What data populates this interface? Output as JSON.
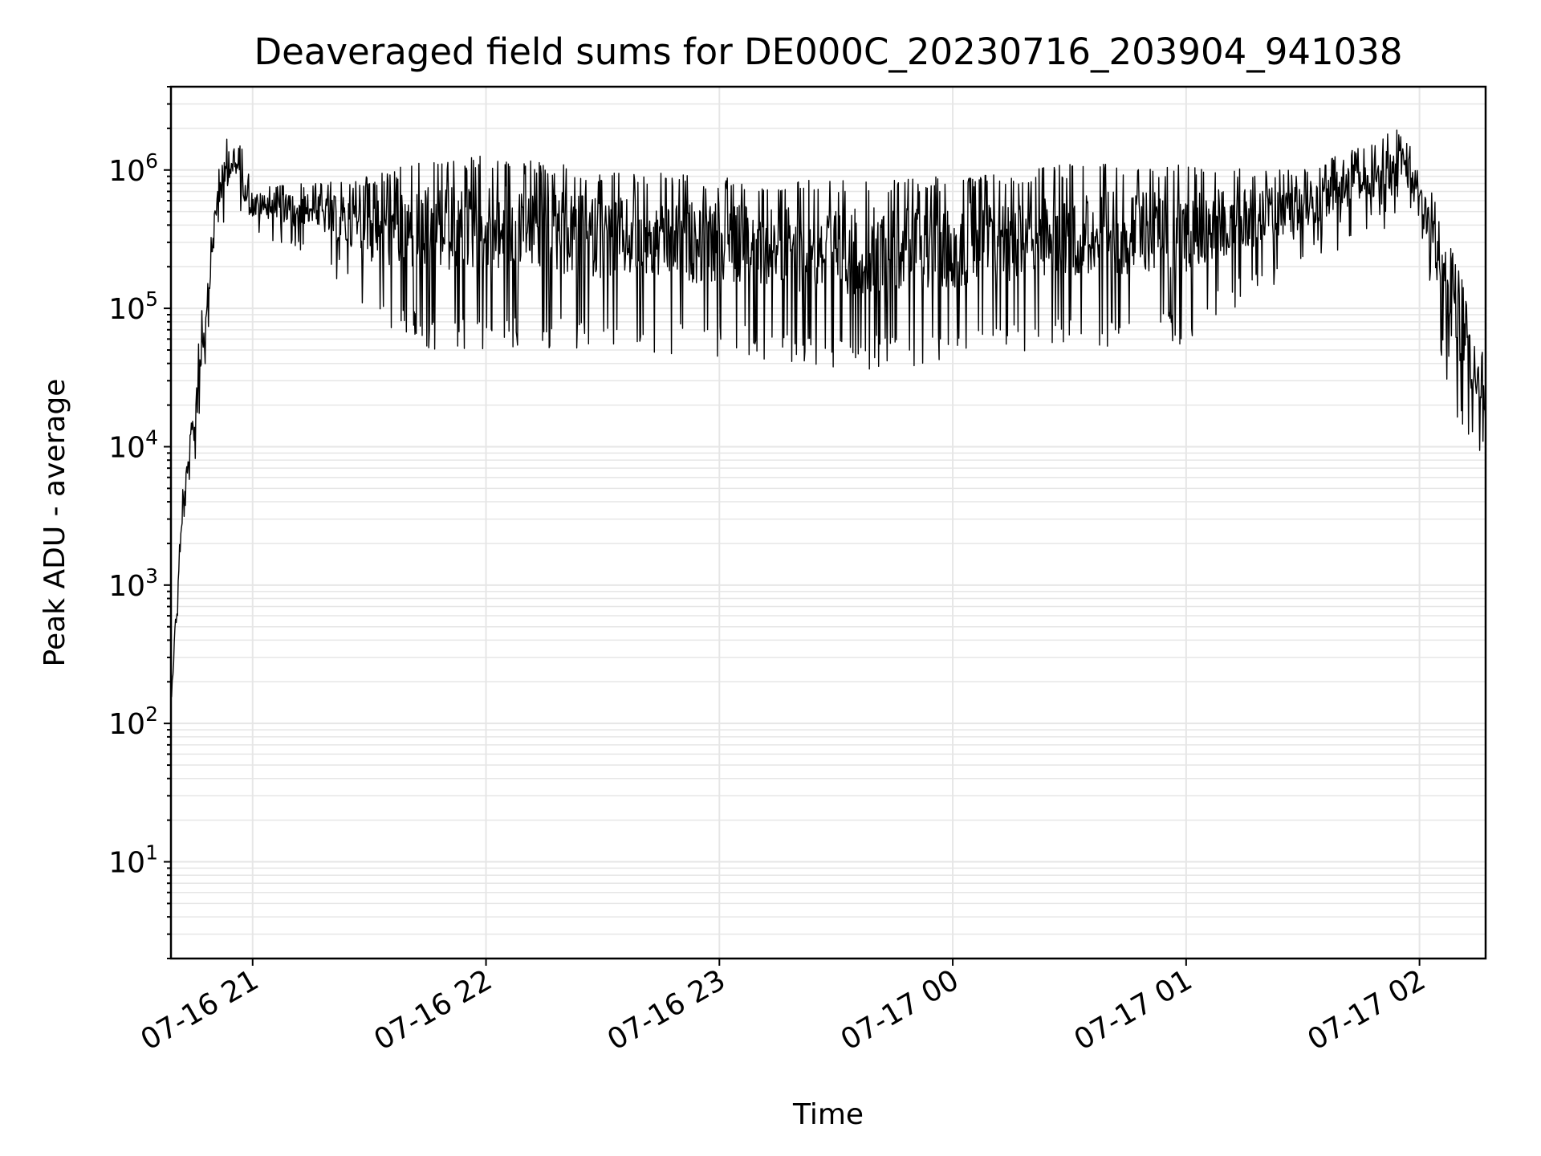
{
  "chart_data": {
    "type": "line",
    "title": "Deaveraged field sums for DE000C_20230716_203904_941038",
    "xlabel": "Time",
    "ylabel": "Peak ADU - average",
    "yscale": "log",
    "ylim": [
      2,
      4000000
    ],
    "xlim": [
      "2023-07-16 20:39",
      "2023-07-17 02:17"
    ],
    "grid": true,
    "color": "#000000",
    "x_ticks": [
      {
        "value": "2023-07-16 21:00",
        "label": "07-16 21"
      },
      {
        "value": "2023-07-16 22:00",
        "label": "07-16 22"
      },
      {
        "value": "2023-07-16 23:00",
        "label": "07-16 23"
      },
      {
        "value": "2023-07-17 00:00",
        "label": "07-17 00"
      },
      {
        "value": "2023-07-17 01:00",
        "label": "07-17 01"
      },
      {
        "value": "2023-07-17 02:00",
        "label": "07-17 02"
      }
    ],
    "y_ticks": [
      {
        "value": 10,
        "base": "10",
        "exp": "1"
      },
      {
        "value": 100,
        "base": "10",
        "exp": "2"
      },
      {
        "value": 1000,
        "base": "10",
        "exp": "3"
      },
      {
        "value": 10000,
        "base": "10",
        "exp": "4"
      },
      {
        "value": 100000,
        "base": "10",
        "exp": "5"
      },
      {
        "value": 1000000,
        "base": "10",
        "exp": "6"
      }
    ],
    "envelope": {
      "time": [
        "2023-07-16 20:39",
        "2023-07-16 20:42",
        "2023-07-16 20:45",
        "2023-07-16 20:48",
        "2023-07-16 20:51",
        "2023-07-16 20:54",
        "2023-07-16 20:57",
        "2023-07-16 21:00",
        "2023-07-16 21:15",
        "2023-07-16 21:30",
        "2023-07-16 21:45",
        "2023-07-16 22:00",
        "2023-07-16 22:30",
        "2023-07-16 23:00",
        "2023-07-16 23:30",
        "2023-07-17 00:00",
        "2023-07-17 00:30",
        "2023-07-17 01:00",
        "2023-07-17 01:30",
        "2023-07-17 01:55",
        "2023-07-17 02:00",
        "2023-07-17 02:05",
        "2023-07-17 02:10",
        "2023-07-17 02:17"
      ],
      "upper": [
        200,
        5000,
        30000,
        200000,
        1000000,
        2000000,
        1500000,
        800000,
        800000,
        900000,
        1200000,
        1300000,
        1000000,
        900000,
        850000,
        900000,
        1100000,
        1100000,
        1000000,
        2000000,
        1200000,
        500000,
        200000,
        40000
      ],
      "lower": [
        100,
        1500,
        5000,
        40000,
        300000,
        500000,
        400000,
        300000,
        250000,
        80000,
        50000,
        50000,
        50000,
        45000,
        35000,
        40000,
        50000,
        55000,
        200000,
        400000,
        350000,
        50000,
        15000,
        7000
      ]
    }
  }
}
